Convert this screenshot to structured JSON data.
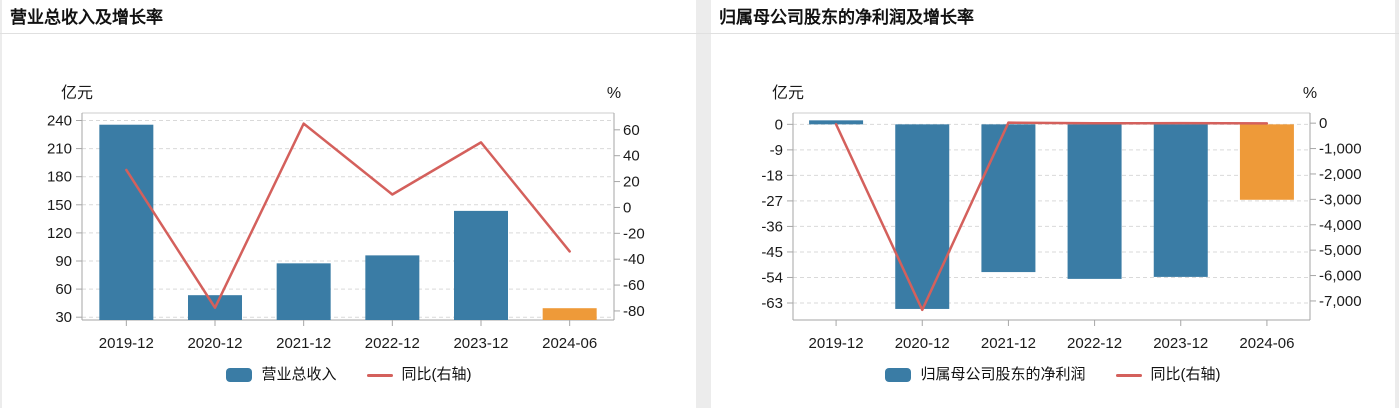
{
  "page": {
    "colors": {
      "page_bg": "#ececec",
      "panel_bg": "#ffffff",
      "divider": "#e0e0e0",
      "text": "#1a1a1a",
      "axis": "#a6a6a6",
      "grid": "#d9d9d9",
      "plot_border": "#cccccc",
      "bar": "#3a7ca5",
      "bar_highlight": "#ee9a39",
      "line": "#d4605c"
    }
  },
  "chart_data": [
    {
      "type": "bar+line",
      "title": "营业总收入及增长率",
      "categories": [
        "2019-12",
        "2020-12",
        "2021-12",
        "2022-12",
        "2023-12",
        "2024-06"
      ],
      "left_axis": {
        "unit": "亿元",
        "ticks": [
          "240",
          "210",
          "180",
          "150",
          "120",
          "90",
          "60",
          "30"
        ],
        "edge_values": [
          248,
          27
        ]
      },
      "right_axis": {
        "unit": "%",
        "ticks": [
          "60",
          "40",
          "20",
          "0",
          "-20",
          "-40",
          "-60",
          "-80"
        ],
        "edge_values": [
          73,
          -87
        ]
      },
      "bar_series": {
        "name": "营业总收入",
        "unit": "亿元",
        "values": [
          235.5,
          53.5,
          87.5,
          96.0,
          143.5,
          39.6
        ],
        "highlight_index": 5
      },
      "line_series": {
        "name": "同比(右轴)",
        "unit": "%",
        "values": [
          29,
          -77.5,
          64.8,
          10,
          50.3,
          -34
        ]
      },
      "legend_position": "bottom",
      "grid_style": "dashed"
    },
    {
      "type": "bar+line",
      "title": "归属母公司股东的净利润及增长率",
      "categories": [
        "2019-12",
        "2020-12",
        "2021-12",
        "2022-12",
        "2023-12",
        "2024-06"
      ],
      "left_axis": {
        "unit": "亿元",
        "ticks": [
          "0",
          "-9",
          "-18",
          "-27",
          "-36",
          "-45",
          "-54",
          "-63"
        ],
        "edge_values": [
          4,
          -69
        ]
      },
      "right_axis": {
        "unit": "%",
        "ticks": [
          "0",
          "-1,000",
          "-2,000",
          "-3,000",
          "-4,000",
          "-5,000",
          "-6,000",
          "-7,000"
        ],
        "edge_values": [
          400,
          -7750
        ]
      },
      "bar_series": {
        "name": "归属母公司股东的净利润",
        "unit": "亿元",
        "values": [
          0.9,
          -65.1,
          -52.1,
          -54.5,
          -53.8,
          -26.6
        ],
        "highlight_index": 5
      },
      "line_series": {
        "name": "同比(右轴)",
        "unit": "%",
        "values": [
          -45,
          -7350,
          20,
          -5,
          1,
          -10
        ]
      },
      "legend_position": "bottom",
      "grid_style": "dashed"
    }
  ]
}
